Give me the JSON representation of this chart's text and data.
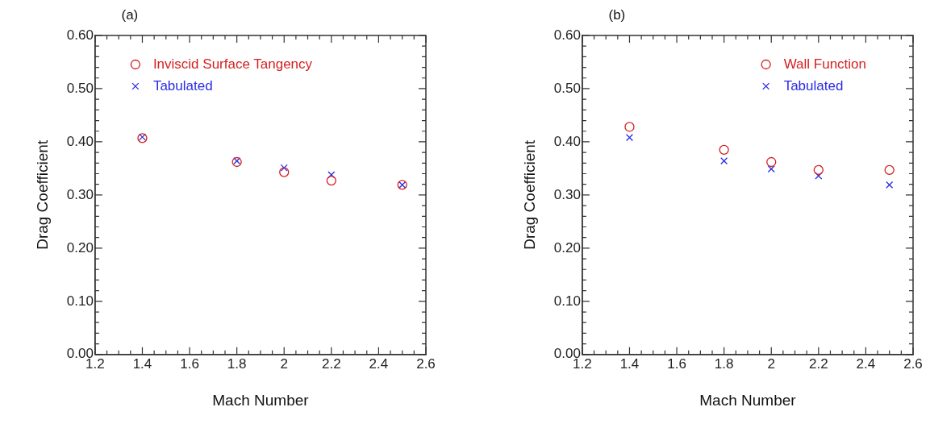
{
  "chart_data": [
    {
      "type": "scatter",
      "title": "(a)",
      "xlabel": "Mach Number",
      "ylabel": "Drag Coefficient",
      "x": [
        1.4,
        1.8,
        2.0,
        2.2,
        2.5
      ],
      "series": [
        {
          "name": "Inviscid Surface Tangency",
          "color": "#d42020",
          "marker": "circle",
          "values": [
            0.407,
            0.362,
            0.343,
            0.327,
            0.319
          ]
        },
        {
          "name": "Tabulated",
          "color": "#2a2ae6",
          "marker": "cross",
          "values": [
            0.409,
            0.364,
            0.351,
            0.338,
            0.319
          ]
        }
      ],
      "xlim": [
        1.2,
        2.6
      ],
      "xticks": [
        1.2,
        {
          "value": 1.25,
          "label": null
        },
        {
          "value": 1.3,
          "label": null
        },
        {
          "value": 1.35,
          "label": null
        },
        1.4,
        {
          "value": 1.45,
          "label": null
        },
        {
          "value": 1.5,
          "label": null
        },
        {
          "value": 1.55,
          "label": null
        },
        1.6,
        {
          "value": 1.65,
          "label": null
        },
        {
          "value": 1.7,
          "label": null
        },
        {
          "value": 1.75,
          "label": null
        },
        1.8,
        {
          "value": 1.85,
          "label": null
        },
        {
          "value": 1.9,
          "label": null
        },
        {
          "value": 1.95,
          "label": null
        },
        2,
        {
          "value": 2.05,
          "label": null
        },
        {
          "value": 2.1,
          "label": null
        },
        {
          "value": 2.15,
          "label": null
        },
        2.2,
        {
          "value": 2.25,
          "label": null
        },
        {
          "value": 2.3,
          "label": null
        },
        {
          "value": 2.35,
          "label": null
        },
        2.4,
        {
          "value": 2.45,
          "label": null
        },
        {
          "value": 2.5,
          "label": null
        },
        {
          "value": 2.55,
          "label": null
        },
        2.6
      ],
      "ylim": [
        0,
        0.6
      ],
      "yticks": [
        {
          "value": 0,
          "label": "0.00"
        },
        {
          "value": 0.02,
          "label": null
        },
        {
          "value": 0.04,
          "label": null
        },
        {
          "value": 0.06,
          "label": null
        },
        {
          "value": 0.08,
          "label": null
        },
        {
          "value": 0.1,
          "label": "0.10"
        },
        {
          "value": 0.12,
          "label": null
        },
        {
          "value": 0.14,
          "label": null
        },
        {
          "value": 0.16,
          "label": null
        },
        {
          "value": 0.18,
          "label": null
        },
        {
          "value": 0.2,
          "label": "0.20"
        },
        {
          "value": 0.22,
          "label": null
        },
        {
          "value": 0.24,
          "label": null
        },
        {
          "value": 0.26,
          "label": null
        },
        {
          "value": 0.28,
          "label": null
        },
        {
          "value": 0.3,
          "label": "0.30"
        },
        {
          "value": 0.32,
          "label": null
        },
        {
          "value": 0.34,
          "label": null
        },
        {
          "value": 0.36,
          "label": null
        },
        {
          "value": 0.38,
          "label": null
        },
        {
          "value": 0.4,
          "label": "0.40"
        },
        {
          "value": 0.42,
          "label": null
        },
        {
          "value": 0.44,
          "label": null
        },
        {
          "value": 0.46,
          "label": null
        },
        {
          "value": 0.48,
          "label": null
        },
        {
          "value": 0.5,
          "label": "0.50"
        },
        {
          "value": 0.52,
          "label": null
        },
        {
          "value": 0.54,
          "label": null
        },
        {
          "value": 0.56,
          "label": null
        },
        {
          "value": 0.58,
          "label": null
        },
        {
          "value": 0.6,
          "label": "0.60"
        }
      ],
      "grid": false,
      "legend": "top left"
    },
    {
      "type": "scatter",
      "title": "(b)",
      "xlabel": "Mach Number",
      "ylabel": "Drag Coefficient",
      "x": [
        1.4,
        1.8,
        2.0,
        2.2,
        2.5
      ],
      "series": [
        {
          "name": "Wall Function",
          "color": "#d42020",
          "marker": "circle",
          "values": [
            0.428,
            0.385,
            0.362,
            0.347,
            0.347
          ]
        },
        {
          "name": "Tabulated",
          "color": "#2a2ae6",
          "marker": "cross",
          "values": [
            0.408,
            0.364,
            0.349,
            0.336,
            0.319
          ]
        }
      ],
      "xlim": [
        1.2,
        2.6
      ],
      "xticks": [
        1.2,
        {
          "value": 1.25,
          "label": null
        },
        {
          "value": 1.3,
          "label": null
        },
        {
          "value": 1.35,
          "label": null
        },
        1.4,
        {
          "value": 1.45,
          "label": null
        },
        {
          "value": 1.5,
          "label": null
        },
        {
          "value": 1.55,
          "label": null
        },
        1.6,
        {
          "value": 1.65,
          "label": null
        },
        {
          "value": 1.7,
          "label": null
        },
        {
          "value": 1.75,
          "label": null
        },
        1.8,
        {
          "value": 1.85,
          "label": null
        },
        {
          "value": 1.9,
          "label": null
        },
        {
          "value": 1.95,
          "label": null
        },
        2,
        {
          "value": 2.05,
          "label": null
        },
        {
          "value": 2.1,
          "label": null
        },
        {
          "value": 2.15,
          "label": null
        },
        2.2,
        {
          "value": 2.25,
          "label": null
        },
        {
          "value": 2.3,
          "label": null
        },
        {
          "value": 2.35,
          "label": null
        },
        2.4,
        {
          "value": 2.45,
          "label": null
        },
        {
          "value": 2.5,
          "label": null
        },
        {
          "value": 2.55,
          "label": null
        },
        2.6
      ],
      "ylim": [
        0,
        0.6
      ],
      "yticks": [
        {
          "value": 0,
          "label": "0.00"
        },
        {
          "value": 0.02,
          "label": null
        },
        {
          "value": 0.04,
          "label": null
        },
        {
          "value": 0.06,
          "label": null
        },
        {
          "value": 0.08,
          "label": null
        },
        {
          "value": 0.1,
          "label": "0.10"
        },
        {
          "value": 0.12,
          "label": null
        },
        {
          "value": 0.14,
          "label": null
        },
        {
          "value": 0.16,
          "label": null
        },
        {
          "value": 0.18,
          "label": null
        },
        {
          "value": 0.2,
          "label": "0.20"
        },
        {
          "value": 0.22,
          "label": null
        },
        {
          "value": 0.24,
          "label": null
        },
        {
          "value": 0.26,
          "label": null
        },
        {
          "value": 0.28,
          "label": null
        },
        {
          "value": 0.3,
          "label": "0.30"
        },
        {
          "value": 0.32,
          "label": null
        },
        {
          "value": 0.34,
          "label": null
        },
        {
          "value": 0.36,
          "label": null
        },
        {
          "value": 0.38,
          "label": null
        },
        {
          "value": 0.4,
          "label": "0.40"
        },
        {
          "value": 0.42,
          "label": null
        },
        {
          "value": 0.44,
          "label": null
        },
        {
          "value": 0.46,
          "label": null
        },
        {
          "value": 0.48,
          "label": null
        },
        {
          "value": 0.5,
          "label": "0.50"
        },
        {
          "value": 0.52,
          "label": null
        },
        {
          "value": 0.54,
          "label": null
        },
        {
          "value": 0.56,
          "label": null
        },
        {
          "value": 0.58,
          "label": null
        },
        {
          "value": 0.6,
          "label": "0.60"
        }
      ],
      "grid": false,
      "legend": "top right"
    }
  ]
}
